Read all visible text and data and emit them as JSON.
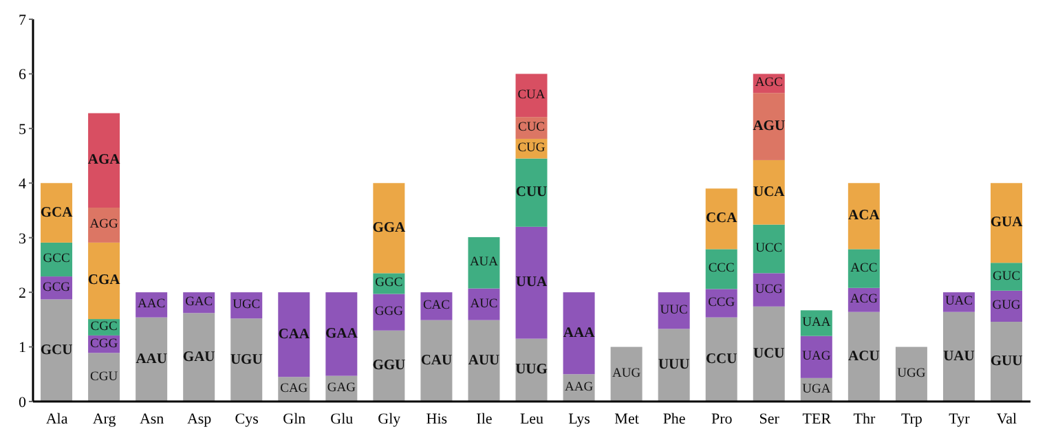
{
  "chart_data": {
    "type": "bar",
    "stacked": true,
    "categories": [
      "Ala",
      "Arg",
      "Asn",
      "Asp",
      "Cys",
      "Gln",
      "Glu",
      "Gly",
      "His",
      "Ile",
      "Leu",
      "Lys",
      "Met",
      "Phe",
      "Pro",
      "Ser",
      "TER",
      "Thr",
      "Trp",
      "Tyr",
      "Val"
    ],
    "series": [
      {
        "color": "#a6a6a6",
        "values": [
          1.87,
          0.89,
          1.54,
          1.62,
          1.52,
          0.45,
          0.47,
          1.3,
          1.49,
          1.49,
          1.15,
          0.5,
          1.0,
          1.33,
          1.54,
          1.74,
          0.43,
          1.64,
          1.0,
          1.64,
          1.46
        ],
        "value_labels": [
          "GCU",
          "CGU",
          "AAU",
          "GAU",
          "UGU",
          "CAG",
          "GAG",
          "GGU",
          "CAU",
          "AUU",
          "UUG",
          "AAG",
          "AUG",
          "UUU",
          "CCU",
          "UCU",
          "UGA",
          "ACU",
          "UGG",
          "UAU",
          "GUU"
        ]
      },
      {
        "color": "#8e55b9",
        "values": [
          0.42,
          0.32,
          0.46,
          0.38,
          0.48,
          1.55,
          1.53,
          0.67,
          0.51,
          0.58,
          2.05,
          1.5,
          null,
          0.67,
          0.52,
          0.61,
          0.77,
          0.44,
          null,
          0.36,
          0.57
        ],
        "value_labels": [
          "GCG",
          "CGG",
          "AAC",
          "GAC",
          "UGC",
          "CAA",
          "GAA",
          "GGG",
          "CAC",
          "AUC",
          "UUA",
          "AAA",
          null,
          "UUC",
          "CCG",
          "UCG",
          "UAG",
          "ACG",
          null,
          "UAC",
          "GUG"
        ]
      },
      {
        "color": "#3fae82",
        "values": [
          0.62,
          0.3,
          null,
          null,
          null,
          null,
          null,
          0.38,
          null,
          0.94,
          1.25,
          null,
          null,
          null,
          0.73,
          0.89,
          0.47,
          0.71,
          null,
          null,
          0.51
        ],
        "value_labels": [
          "GCC",
          "CGC",
          null,
          null,
          null,
          null,
          null,
          "GGC",
          null,
          "AUA",
          "CUU",
          null,
          null,
          null,
          "CCC",
          "UCC",
          "UAA",
          "ACC",
          null,
          null,
          "GUC"
        ]
      },
      {
        "color": "#eba746",
        "values": [
          1.09,
          1.4,
          null,
          null,
          null,
          null,
          null,
          1.65,
          null,
          null,
          0.36,
          null,
          null,
          null,
          1.11,
          1.18,
          null,
          1.21,
          null,
          null,
          1.46
        ],
        "value_labels": [
          "GCA",
          "CGA",
          null,
          null,
          null,
          null,
          null,
          "GGA",
          null,
          null,
          "CUG",
          null,
          null,
          null,
          "CCA",
          "UCA",
          null,
          "ACA",
          null,
          null,
          "GUA"
        ]
      },
      {
        "color": "#dc7664",
        "values": [
          null,
          0.64,
          null,
          null,
          null,
          null,
          null,
          null,
          null,
          null,
          0.4,
          null,
          null,
          null,
          null,
          1.23,
          null,
          null,
          null,
          null,
          null
        ],
        "value_labels": [
          null,
          "AGG",
          null,
          null,
          null,
          null,
          null,
          null,
          null,
          null,
          "CUC",
          null,
          null,
          null,
          null,
          "AGU",
          null,
          null,
          null,
          null,
          null
        ]
      },
      {
        "color": "#d84f62",
        "values": [
          null,
          1.73,
          null,
          null,
          null,
          null,
          null,
          null,
          null,
          null,
          0.79,
          null,
          null,
          null,
          null,
          0.35,
          null,
          null,
          null,
          null,
          null
        ],
        "value_labels": [
          null,
          "AGA",
          null,
          null,
          null,
          null,
          null,
          null,
          null,
          null,
          "CUA",
          null,
          null,
          null,
          null,
          "AGC",
          null,
          null,
          null,
          null,
          null
        ]
      }
    ],
    "ylim": [
      0,
      7
    ],
    "yticks": [
      0,
      1,
      2,
      3,
      4,
      5,
      6,
      7
    ],
    "grid": false,
    "legend": false
  }
}
